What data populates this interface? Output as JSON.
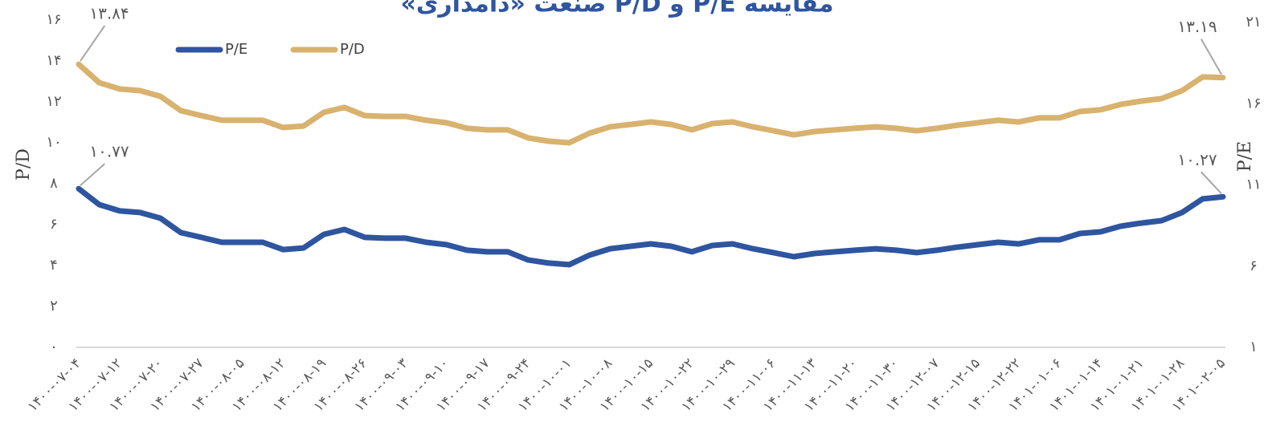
{
  "chart_data": {
    "type": "line",
    "title": "مقایسه P/E و P/D صنعت «دامداری»",
    "ylabel": "P/D",
    "y2label": "P/E",
    "legend": "top-left",
    "categories": [
      "۱۴۰۰-۰۷-۰۴",
      null,
      "۱۴۰۰-۰۷-۱۲",
      null,
      "۱۴۰۰-۰۷-۲۰",
      null,
      "۱۴۰۰-۰۷-۲۷",
      null,
      "۱۴۰۰-۰۸-۰۵",
      null,
      "۱۴۰۰-۰۸-۱۲",
      null,
      "۱۴۰۰-۰۸-۱۹",
      null,
      "۱۴۰۰-۰۸-۲۶",
      null,
      "۱۴۰۰-۰۹-۰۳",
      null,
      "۱۴۰۰-۰۹-۱۰",
      null,
      "۱۴۰۰-۰۹-۱۷",
      null,
      "۱۴۰۰-۰۹-۲۴",
      null,
      "۱۴۰۰-۱۰-۰۱",
      null,
      "۱۴۰۰-۱۰-۰۸",
      null,
      "۱۴۰۰-۱۰-۱۵",
      null,
      "۱۴۰۰-۱۰-۲۲",
      null,
      "۱۴۰۰-۱۰-۲۹",
      null,
      "۱۴۰۰-۱۱-۰۶",
      null,
      "۱۴۰۰-۱۱-۱۳",
      null,
      "۱۴۰۰-۱۱-۲۰",
      null,
      "۱۴۰۰-۱۱-۳۰",
      null,
      "۱۴۰۰-۱۲-۰۷",
      null,
      "۱۴۰۰-۱۲-۱۵",
      null,
      "۱۴۰۰-۱۲-۲۲",
      null,
      "۱۴۰۱-۰۱-۰۶",
      null,
      "۱۴۰۱-۰۱-۱۴",
      null,
      "۱۴۰۱-۰۱-۲۱",
      null,
      "۱۴۰۱-۰۱-۲۸",
      null,
      "۱۴۰۱-۰۲-۰۵"
    ],
    "series": [
      {
        "name": "P/E",
        "color": "#2e55a0",
        "axis": "y2",
        "values": [
          10.77,
          9.79,
          9.4,
          9.3,
          8.95,
          8.06,
          7.77,
          7.47,
          7.47,
          7.47,
          7.02,
          7.12,
          7.96,
          8.26,
          7.77,
          7.72,
          7.72,
          7.47,
          7.32,
          6.98,
          6.88,
          6.88,
          6.38,
          6.19,
          6.09,
          6.68,
          7.07,
          7.22,
          7.37,
          7.22,
          6.88,
          7.27,
          7.37,
          7.07,
          6.83,
          6.58,
          6.78,
          6.88,
          6.98,
          7.07,
          6.98,
          6.83,
          6.98,
          7.17,
          7.32,
          7.47,
          7.37,
          7.62,
          7.62,
          8.01,
          8.11,
          8.46,
          8.65,
          8.8,
          9.3,
          10.14,
          10.27
        ],
        "value_labels": [
          "۱۰.۷۷",
          null,
          null,
          null,
          null,
          null,
          null,
          null,
          null,
          null,
          null,
          null,
          null,
          null,
          null,
          null,
          null,
          null,
          null,
          null,
          null,
          null,
          null,
          null,
          null,
          null,
          null,
          null,
          null,
          null,
          null,
          null,
          null,
          null,
          null,
          null,
          null,
          null,
          null,
          null,
          null,
          null,
          null,
          null,
          null,
          null,
          null,
          null,
          null,
          null,
          null,
          null,
          null,
          null,
          null,
          null,
          "۱۰.۲۷"
        ]
      },
      {
        "name": "P/D",
        "color": "#d8b26e",
        "values": [
          13.84,
          12.94,
          12.63,
          12.55,
          12.27,
          11.57,
          11.33,
          11.1,
          11.1,
          11.1,
          10.75,
          10.82,
          11.49,
          11.73,
          11.33,
          11.29,
          11.29,
          11.1,
          10.98,
          10.71,
          10.63,
          10.63,
          10.24,
          10.08,
          10.0,
          10.47,
          10.78,
          10.9,
          11.02,
          10.9,
          10.63,
          10.94,
          11.02,
          10.78,
          10.59,
          10.39,
          10.55,
          10.63,
          10.71,
          10.78,
          10.71,
          10.59,
          10.71,
          10.86,
          10.98,
          11.1,
          11.02,
          11.22,
          11.22,
          11.53,
          11.61,
          11.88,
          12.04,
          12.16,
          12.55,
          13.22,
          13.19
        ],
        "value_labels": [
          "۱۳.۸۴",
          null,
          null,
          null,
          null,
          null,
          null,
          null,
          null,
          null,
          null,
          null,
          null,
          null,
          null,
          null,
          null,
          null,
          null,
          null,
          null,
          null,
          null,
          null,
          null,
          null,
          null,
          null,
          null,
          null,
          null,
          null,
          null,
          null,
          null,
          null,
          null,
          null,
          null,
          null,
          null,
          null,
          null,
          null,
          null,
          null,
          null,
          null,
          null,
          null,
          null,
          null,
          null,
          null,
          null,
          null,
          "۱۳.۱۹"
        ]
      }
    ],
    "ylim": [
      0,
      16
    ],
    "yticks": [
      {
        "value": 0,
        "label": "۰"
      },
      {
        "value": 2,
        "label": "۲"
      },
      {
        "value": 4,
        "label": "۴"
      },
      {
        "value": 6,
        "label": "۶"
      },
      {
        "value": 8,
        "label": "۸"
      },
      {
        "value": 10,
        "label": "۱۰"
      },
      {
        "value": 12,
        "label": "۱۲"
      },
      {
        "value": 14,
        "label": "۱۴"
      },
      {
        "value": 16,
        "label": "۱۶"
      }
    ],
    "y2lim": [
      1,
      21
    ],
    "y2ticks": [
      {
        "value": 1,
        "label": "۱"
      },
      {
        "value": 6,
        "label": "۶"
      },
      {
        "value": 11,
        "label": "۱۱"
      },
      {
        "value": 16,
        "label": "۱۶"
      },
      {
        "value": 21,
        "label": "۲۱"
      }
    ]
  }
}
